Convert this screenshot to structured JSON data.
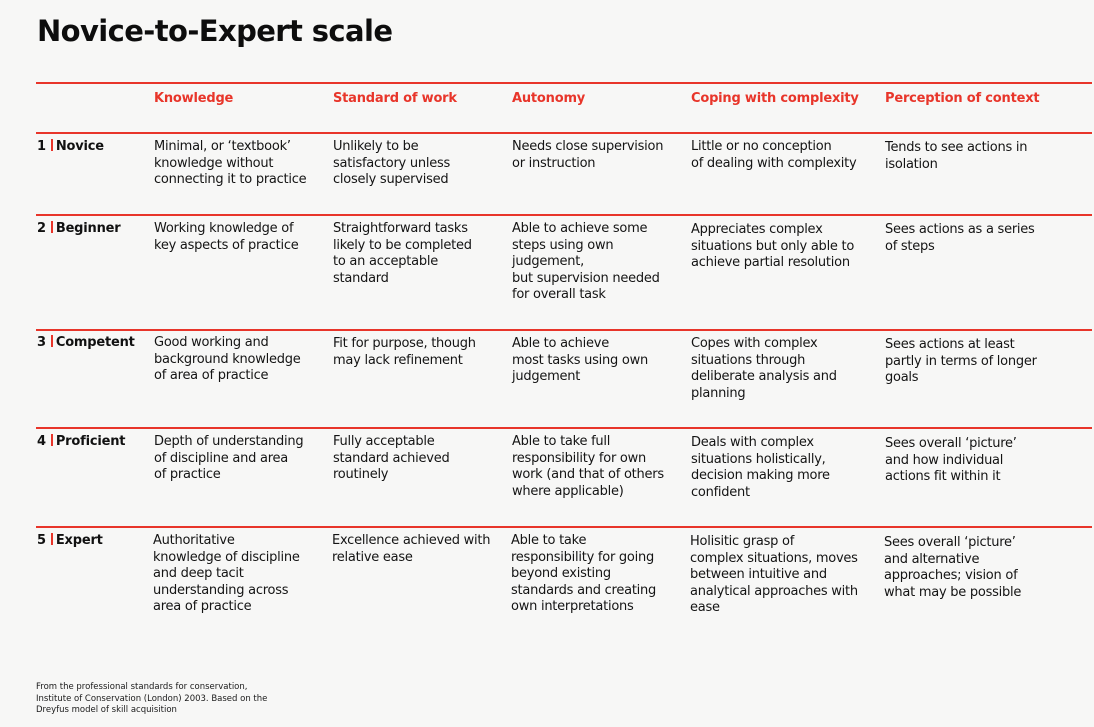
{
  "title": "Novice-to-Expert scale",
  "accent_color": "#e8352a",
  "columns": [
    "Knowledge",
    "Standard of work",
    "Autonomy",
    "Coping with complexity",
    "Perception of context"
  ],
  "rows": [
    {
      "number": "1",
      "level": "Novice",
      "cells": [
        "Minimal, or ‘textbook’\nknowledge without\nconnecting it to practice",
        "Unlikely to be\nsatisfactory unless\nclosely supervised",
        "Needs close supervision\nor instruction",
        "Little or no conception\nof dealing with complexity",
        "Tends to see actions in\nisolation"
      ]
    },
    {
      "number": "2",
      "level": "Beginner",
      "cells": [
        "Working knowledge of\nkey aspects of practice",
        "Straightforward tasks\nlikely to be completed\nto an acceptable\nstandard",
        "Able to achieve some\nsteps using own\njudgement,\nbut supervision needed\nfor overall task",
        "Appreciates complex\nsituations but only able to\nachieve partial resolution",
        "Sees actions as a series\nof steps"
      ]
    },
    {
      "number": "3",
      "level": "Competent",
      "cells": [
        "Good working and\nbackground knowledge\nof area of practice",
        "Fit for purpose, though\nmay lack refinement",
        "Able to achieve\nmost tasks using own\njudgement",
        "Copes with complex\nsituations through\ndeliberate analysis and\nplanning",
        "Sees actions at least\npartly in terms of longer\ngoals"
      ]
    },
    {
      "number": "4",
      "level": "Proficient",
      "cells": [
        "Depth of understanding\nof discipline and area\nof practice",
        "Fully acceptable\nstandard achieved\nroutinely",
        "Able to take full\nresponsibility for own\nwork (and that of others\nwhere applicable)",
        "Deals with complex\nsituations holistically,\ndecision making more\nconfident",
        "Sees overall ‘picture’\nand how individual\nactions fit within it"
      ]
    },
    {
      "number": "5",
      "level": "Expert",
      "cells": [
        "Authoritative\nknowledge of discipline\nand deep tacit\nunderstanding across\narea of practice",
        "Excellence achieved with\nrelative ease",
        "Able to take\nresponsibility for going\nbeyond existing\nstandards and creating\nown interpretations",
        "Holisitic grasp of\ncomplex situations, moves\nbetween intuitive and\nanalytical approaches with\nease",
        "Sees overall ‘picture’\nand alternative\napproaches; vision of\nwhat may be possible"
      ]
    }
  ],
  "footnote": "From the professional standards for conservation,\nInstitute of Conservation (London) 2003. Based on the\nDreyfus model of skill acquisition"
}
